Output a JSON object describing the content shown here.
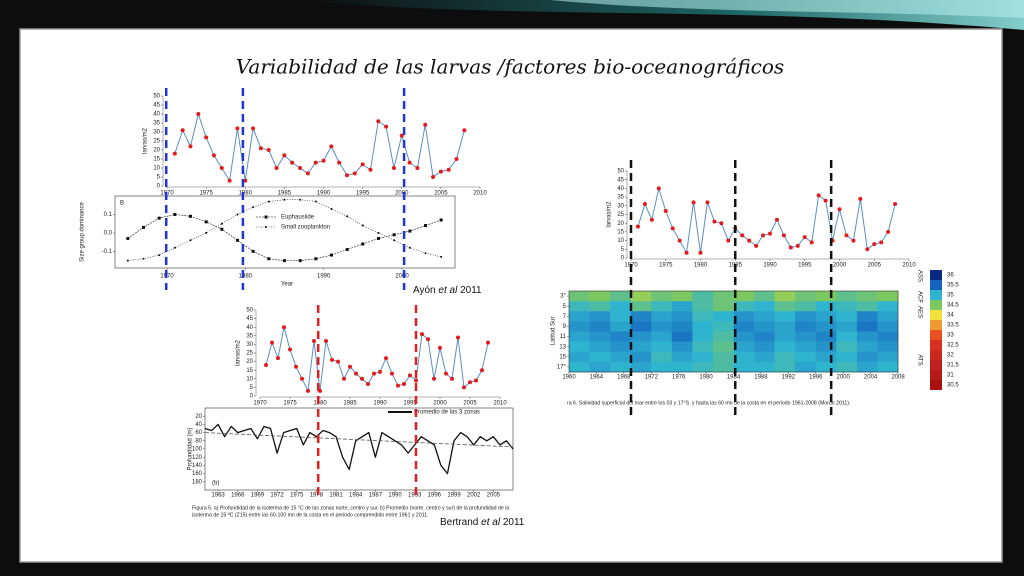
{
  "title": "Variabilidad de las larvas /factores bio-oceanográficos",
  "citations": [
    {
      "author": "Ayón ",
      "etal": "et al",
      "year": " 2011"
    },
    {
      "author": "Bertrand ",
      "etal": "et al",
      "year": " 2011"
    }
  ],
  "figure5_caption": [
    "Figura 5. a) Profundidad de la isoterma de 15 °C de las zonas norte, centro y sur. b) Promedio (norte, centro y sur) de la profundidad de la",
    "isoterma de 15 ºC (Z15) entre las 60-100 mn de la costa en el periodo comprendido entre 1961 y 2011."
  ],
  "figure6_caption": "ra 6. Salinidad superficial del mar entre los 03 y 17°S  y hasta las 60 mn de la costa en el periodo 1961-2008 (Morón 2011).",
  "reference_lines": [
    {
      "x": [
        1969.9,
        1979.7,
        2000.3
      ],
      "color": "#1f35d8"
    },
    {
      "x": [
        1979.7,
        1996
      ],
      "color": "#e02020"
    },
    {
      "x": [
        1970,
        1985,
        1998.8
      ],
      "color": "#111111"
    }
  ],
  "chart_data": [
    {
      "type": "line",
      "y_label": "larvas/m2",
      "x": [
        1971,
        1972,
        1973,
        1974,
        1975,
        1976,
        1977,
        1978,
        1979,
        1980,
        1981,
        1982,
        1983,
        1984,
        1985,
        1986,
        1987,
        1988,
        1989,
        1990,
        1991,
        1992,
        1993,
        1994,
        1995,
        1996,
        1997,
        1998,
        1999,
        2000,
        2001,
        2002,
        2003,
        2004,
        2005,
        2006,
        2007,
        2008
      ],
      "values": [
        18,
        31,
        22,
        40,
        27,
        17,
        10,
        3,
        32,
        3,
        32,
        21,
        20,
        10,
        17,
        13,
        10,
        7,
        13,
        14,
        22,
        13,
        6,
        7,
        12,
        9,
        36,
        33,
        10,
        28,
        13,
        10,
        34,
        5,
        8,
        9,
        15,
        31
      ],
      "line_color": "#5b8fbf",
      "marker_color": "#e41a1c",
      "xlim": [
        1970,
        2010
      ],
      "xticks": [
        1970,
        1975,
        1980,
        1985,
        1990,
        1995,
        2000,
        2005,
        2010
      ],
      "ylim": [
        0,
        50
      ],
      "yticks": [
        0,
        5,
        10,
        15,
        20,
        25,
        30,
        35,
        40,
        45,
        50
      ]
    },
    {
      "type": "line",
      "panel_label": "B",
      "x_label": "Year",
      "y_label": "Size group dominance",
      "x": [
        1965,
        1967,
        1969,
        1971,
        1973,
        1975,
        1977,
        1979,
        1981,
        1983,
        1985,
        1987,
        1989,
        1991,
        1993,
        1995,
        1997,
        1999,
        2001,
        2003,
        2005
      ],
      "series": [
        {
          "name": "Euphausiide",
          "color": "#111111",
          "values": [
            -0.03,
            0.03,
            0.08,
            0.1,
            0.09,
            0.06,
            0.02,
            -0.04,
            -0.1,
            -0.14,
            -0.15,
            -0.15,
            -0.14,
            -0.12,
            -0.09,
            -0.06,
            -0.03,
            -0.01,
            0.01,
            0.04,
            0.07
          ]
        },
        {
          "name": "Small zooplankton",
          "color": "#111111",
          "values": [
            -0.15,
            -0.14,
            -0.12,
            -0.08,
            -0.04,
            0.0,
            0.05,
            0.1,
            0.14,
            0.17,
            0.18,
            0.18,
            0.17,
            0.13,
            0.09,
            0.04,
            0.0,
            -0.04,
            -0.08,
            -0.11,
            -0.13
          ]
        }
      ],
      "xlim": [
        1964,
        2006
      ],
      "xticks": [
        1970,
        1980,
        1990,
        2000
      ],
      "ylim": [
        -0.19,
        0.2
      ],
      "yticks": [
        -0.1,
        {
          "value": 0,
          "label": "0.0"
        },
        0.1
      ]
    },
    {
      "type": "line",
      "panel_label": "(b)",
      "y_label": "Profundidad (m)",
      "legend_label": "Promedio de las 3 zonas",
      "x": [
        1961,
        1962,
        1963,
        1964,
        1965,
        1966,
        1967,
        1968,
        1969,
        1970,
        1971,
        1972,
        1973,
        1974,
        1975,
        1976,
        1977,
        1978,
        1979,
        1980,
        1981,
        1982,
        1983,
        1984,
        1985,
        1986,
        1987,
        1988,
        1989,
        1990,
        1991,
        1992,
        1993,
        1994,
        1995,
        1996,
        1997,
        1998,
        1999,
        2000,
        2001,
        2002,
        2003,
        2004,
        2005,
        2006,
        2007,
        2008
      ],
      "values": [
        50,
        55,
        40,
        70,
        45,
        60,
        55,
        50,
        75,
        45,
        50,
        110,
        60,
        55,
        50,
        90,
        60,
        70,
        55,
        60,
        70,
        120,
        150,
        80,
        70,
        60,
        120,
        60,
        70,
        80,
        90,
        110,
        90,
        70,
        80,
        90,
        140,
        160,
        80,
        60,
        70,
        90,
        70,
        80,
        70,
        90,
        80,
        100
      ],
      "trend": {
        "x": [
          1961,
          2008
        ],
        "values": [
          60,
          95
        ]
      },
      "color": "#111111",
      "xlim": [
        1961,
        2008
      ],
      "xticks": [
        1963,
        1966,
        1969,
        1972,
        1975,
        1978,
        1981,
        1984,
        1987,
        1990,
        1993,
        1996,
        1999,
        2002,
        2005
      ],
      "ylim": [
        0,
        200
      ],
      "y_inverted": true,
      "yticks": [
        20,
        40,
        60,
        80,
        100,
        120,
        140,
        160,
        180
      ]
    },
    {
      "type": "heatmap",
      "y_label": "Latitud Sur",
      "x": [
        1960,
        1963,
        1966,
        1969,
        1972,
        1975,
        1978,
        1981,
        1984,
        1987,
        1990,
        1993,
        1996,
        1999,
        2002,
        2005
      ],
      "cell_width": 3,
      "y": [
        3,
        5,
        7,
        9,
        11,
        13,
        15,
        17
      ],
      "values": [
        [
          34.6,
          34.5,
          34.7,
          34.4,
          34.6,
          34.5,
          34.8,
          34.6,
          34.5,
          34.7,
          34.4,
          34.6,
          34.5,
          34.7,
          34.6,
          34.5
        ],
        [
          34.9,
          34.8,
          35.0,
          34.7,
          34.9,
          35.1,
          34.8,
          34.6,
          34.9,
          35.0,
          34.7,
          34.8,
          35.0,
          34.9,
          34.8,
          35.0
        ],
        [
          35.1,
          35.2,
          35.0,
          35.3,
          35.1,
          35.2,
          34.9,
          35.0,
          35.2,
          35.1,
          35.0,
          35.2,
          35.1,
          35.0,
          35.3,
          35.1
        ],
        [
          35.2,
          35.3,
          35.1,
          35.4,
          35.2,
          35.3,
          35.0,
          34.9,
          35.3,
          35.2,
          35.1,
          35.3,
          35.2,
          35.1,
          35.4,
          35.2
        ],
        [
          35.1,
          35.2,
          35.3,
          35.2,
          35.1,
          35.4,
          35.0,
          34.8,
          35.2,
          35.3,
          35.1,
          35.2,
          35.3,
          35.0,
          35.2,
          35.3
        ],
        [
          35.0,
          35.1,
          35.2,
          35.1,
          35.0,
          35.2,
          34.9,
          34.7,
          35.1,
          35.2,
          35.0,
          35.1,
          35.2,
          34.9,
          35.1,
          35.2
        ],
        [
          35.1,
          35.0,
          35.1,
          35.2,
          34.9,
          35.1,
          35.0,
          34.8,
          35.0,
          35.1,
          34.9,
          35.0,
          35.1,
          35.0,
          35.2,
          35.1
        ],
        [
          35.0,
          35.1,
          35.0,
          35.1,
          35.0,
          35.0,
          34.9,
          34.8,
          35.0,
          35.0,
          34.9,
          35.1,
          35.0,
          34.9,
          35.1,
          35.0
        ]
      ],
      "xlim": [
        1960,
        2008
      ],
      "xticks": [
        1960,
        1964,
        1968,
        1972,
        1976,
        1980,
        1984,
        1988,
        1992,
        1996,
        2000,
        2004,
        2008
      ],
      "ylim": [
        2,
        18
      ],
      "yticks": [
        {
          "value": 3,
          "label": "3°"
        },
        5,
        7,
        9,
        11,
        13,
        15,
        {
          "value": 17,
          "label": "17°"
        }
      ],
      "colorbar": {
        "ticks": [
          36,
          35.5,
          35,
          34.5,
          34,
          33.5,
          33,
          32.5,
          32,
          31.5,
          31,
          30.5
        ],
        "colors": [
          "#0b2a84",
          "#1565c0",
          "#2fb4d0",
          "#7cc860",
          "#f2e13a",
          "#f29a30",
          "#e8501e",
          "#d83020",
          "#cc2820",
          "#c22020",
          "#b81a18",
          "#aa1212"
        ],
        "water_masses": [
          {
            "label": "ASS",
            "color": "#1a52b0"
          },
          {
            "label": "ACF",
            "color": "#3fa845"
          },
          {
            "label": "AES",
            "color": "#d8b820"
          },
          {
            "label": "ATS",
            "color": "#d42020"
          }
        ]
      }
    }
  ]
}
